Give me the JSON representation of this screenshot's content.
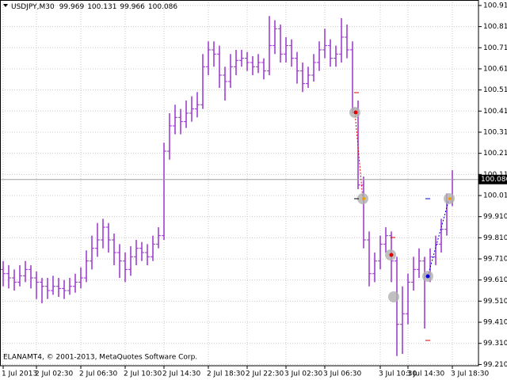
{
  "chart_data": {
    "type": "ohlc",
    "title": "USDJPY,M30",
    "header_values": [
      99.969,
      100.131,
      99.966,
      100.086
    ],
    "footer": "ELANAMT4, © 2001-2013, MetaQuotes Software Corp.",
    "color": "#9932cc",
    "grid": true,
    "current_price": 100.086,
    "categories": [
      "1 Jul 2013",
      null,
      null,
      null,
      null,
      null,
      "2 Jul 02:30",
      null,
      null,
      null,
      null,
      null,
      null,
      null,
      "2 Jul 06:30",
      null,
      null,
      null,
      null,
      null,
      null,
      null,
      "2 Jul 10:30",
      null,
      null,
      null,
      null,
      null,
      null,
      "2 Jul 14:30",
      null,
      null,
      null,
      null,
      null,
      null,
      null,
      "2 Jul 18:30",
      null,
      null,
      null,
      null,
      null,
      null,
      "2 Jul 22:30",
      null,
      null,
      null,
      null,
      null,
      null,
      "3 Jul 02:30",
      null,
      null,
      null,
      null,
      null,
      null,
      "3 Jul 06:30",
      null,
      null,
      null,
      null,
      null,
      null,
      null,
      null,
      null,
      "3 Jul 10:30",
      null,
      null,
      null,
      null,
      "3 Jul 14:30",
      null,
      null,
      null,
      null,
      null,
      null,
      null,
      "3 Jul 18:30"
    ],
    "ohlc": [
      [
        99.66,
        99.7,
        99.58,
        99.64
      ],
      [
        99.64,
        99.68,
        99.57,
        99.62
      ],
      [
        99.62,
        99.66,
        99.56,
        99.6
      ],
      [
        99.6,
        99.68,
        99.58,
        99.63
      ],
      [
        99.63,
        99.7,
        99.6,
        99.66
      ],
      [
        99.66,
        99.68,
        99.57,
        99.62
      ],
      [
        99.62,
        99.65,
        99.52,
        99.6
      ],
      [
        99.6,
        99.62,
        99.5,
        99.58
      ],
      [
        99.58,
        99.62,
        99.52,
        99.56
      ],
      [
        99.56,
        99.63,
        99.54,
        99.58
      ],
      [
        99.58,
        99.62,
        99.53,
        99.57
      ],
      [
        99.57,
        99.61,
        99.52,
        99.56
      ],
      [
        99.56,
        99.62,
        99.54,
        99.58
      ],
      [
        99.58,
        99.64,
        99.55,
        99.6
      ],
      [
        99.6,
        99.67,
        99.57,
        99.62
      ],
      [
        99.62,
        99.75,
        99.6,
        99.7
      ],
      [
        99.7,
        99.82,
        99.66,
        99.76
      ],
      [
        99.76,
        99.88,
        99.72,
        99.8
      ],
      [
        99.8,
        99.9,
        99.76,
        99.86
      ],
      [
        99.86,
        99.88,
        99.74,
        99.8
      ],
      [
        99.8,
        99.83,
        99.68,
        99.74
      ],
      [
        99.74,
        99.78,
        99.62,
        99.7
      ],
      [
        99.7,
        99.74,
        99.6,
        99.66
      ],
      [
        99.66,
        99.77,
        99.63,
        99.72
      ],
      [
        99.72,
        99.8,
        99.68,
        99.76
      ],
      [
        99.76,
        99.79,
        99.7,
        99.74
      ],
      [
        99.74,
        99.78,
        99.68,
        99.72
      ],
      [
        99.72,
        99.82,
        99.7,
        99.78
      ],
      [
        99.78,
        99.86,
        99.76,
        99.82
      ],
      [
        99.82,
        100.26,
        99.8,
        100.22
      ],
      [
        100.22,
        100.4,
        100.18,
        100.34
      ],
      [
        100.34,
        100.44,
        100.3,
        100.38
      ],
      [
        100.38,
        100.42,
        100.3,
        100.36
      ],
      [
        100.36,
        100.46,
        100.33,
        100.4
      ],
      [
        100.4,
        100.48,
        100.36,
        100.42
      ],
      [
        100.42,
        100.5,
        100.38,
        100.44
      ],
      [
        100.44,
        100.68,
        100.42,
        100.62
      ],
      [
        100.62,
        100.74,
        100.58,
        100.7
      ],
      [
        100.7,
        100.74,
        100.62,
        100.68
      ],
      [
        100.68,
        100.72,
        100.52,
        100.58
      ],
      [
        100.58,
        100.62,
        100.46,
        100.55
      ],
      [
        100.55,
        100.68,
        100.52,
        100.62
      ],
      [
        100.62,
        100.7,
        100.58,
        100.65
      ],
      [
        100.65,
        100.7,
        100.62,
        100.66
      ],
      [
        100.66,
        100.69,
        100.6,
        100.64
      ],
      [
        100.64,
        100.67,
        100.58,
        100.62
      ],
      [
        100.62,
        100.68,
        100.59,
        100.64
      ],
      [
        100.64,
        100.66,
        100.56,
        100.6
      ],
      [
        100.6,
        100.86,
        100.58,
        100.72
      ],
      [
        100.72,
        100.84,
        100.68,
        100.8
      ],
      [
        100.8,
        100.82,
        100.64,
        100.68
      ],
      [
        100.68,
        100.76,
        100.64,
        100.72
      ],
      [
        100.72,
        100.75,
        100.62,
        100.66
      ],
      [
        100.66,
        100.69,
        100.54,
        100.6
      ],
      [
        100.6,
        100.64,
        100.5,
        100.54
      ],
      [
        100.54,
        100.62,
        100.52,
        100.58
      ],
      [
        100.58,
        100.68,
        100.55,
        100.64
      ],
      [
        100.64,
        100.74,
        100.6,
        100.7
      ],
      [
        100.7,
        100.8,
        100.66,
        100.72
      ],
      [
        100.72,
        100.75,
        100.62,
        100.66
      ],
      [
        100.66,
        100.72,
        100.62,
        100.68
      ],
      [
        100.68,
        100.85,
        100.64,
        100.76
      ],
      [
        100.76,
        100.82,
        100.66,
        100.7
      ],
      [
        100.7,
        100.74,
        100.4,
        100.42
      ],
      [
        100.42,
        100.46,
        100.04,
        100.06
      ],
      [
        100.06,
        100.1,
        99.76,
        99.8
      ],
      [
        99.8,
        99.84,
        99.58,
        99.64
      ],
      [
        99.64,
        99.74,
        99.6,
        99.7
      ],
      [
        99.7,
        99.82,
        99.66,
        99.78
      ],
      [
        99.78,
        99.86,
        99.74,
        99.82
      ],
      [
        99.82,
        99.84,
        99.6,
        99.7
      ],
      [
        99.7,
        99.72,
        99.25,
        99.4
      ],
      [
        99.4,
        99.58,
        99.26,
        99.45
      ],
      [
        99.45,
        99.64,
        99.4,
        99.6
      ],
      [
        99.6,
        99.72,
        99.56,
        99.66
      ],
      [
        99.66,
        99.76,
        99.62,
        99.7
      ],
      [
        99.7,
        99.72,
        99.38,
        99.64
      ],
      [
        99.64,
        99.76,
        99.6,
        99.72
      ],
      [
        99.72,
        99.82,
        99.68,
        99.78
      ],
      [
        99.78,
        99.9,
        99.74,
        99.85
      ],
      [
        99.85,
        100.02,
        99.82,
        99.98
      ],
      [
        99.98,
        100.13,
        99.96,
        100.086
      ]
    ],
    "ylim": [
      99.204,
      100.936
    ],
    "yticks": [
      {
        "value": 100.91,
        "label": "100.910"
      },
      {
        "value": 100.81,
        "label": "100.810"
      },
      {
        "value": 100.71,
        "label": "100.710"
      },
      {
        "value": 100.61,
        "label": "100.610"
      },
      {
        "value": 100.51,
        "label": "100.510"
      },
      {
        "value": 100.41,
        "label": "100.410"
      },
      {
        "value": 100.31,
        "label": "100.310"
      },
      {
        "value": 100.21,
        "label": "100.210"
      },
      {
        "value": 100.11,
        "label": "100.110"
      },
      {
        "value": 100.01,
        "label": "100.010"
      },
      {
        "value": 99.91,
        "label": "99.910"
      },
      {
        "value": 99.81,
        "label": "99.810"
      },
      {
        "value": 99.71,
        "label": "99.710"
      },
      {
        "value": 99.61,
        "label": "99.610"
      },
      {
        "value": 99.51,
        "label": "99.510"
      },
      {
        "value": 99.41,
        "label": "99.410"
      },
      {
        "value": 99.31,
        "label": "99.310"
      },
      {
        "value": 99.21,
        "label": "99.210"
      }
    ]
  }
}
